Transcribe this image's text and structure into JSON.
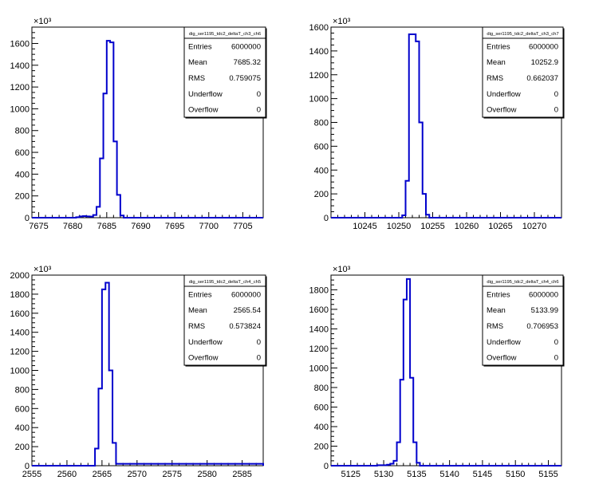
{
  "style": {
    "line_color": "#0000cc",
    "axis_color": "#000000",
    "background": "#ffffff"
  },
  "chart_data": [
    {
      "type": "histogram",
      "title": "",
      "xlabel": "",
      "ylabel": "",
      "exponent_label": "×10³",
      "xlim": [
        7674,
        7708
      ],
      "ylim": [
        0,
        1750
      ],
      "x_ticks": [
        7675,
        7680,
        7685,
        7690,
        7695,
        7700,
        7705
      ],
      "y_ticks": [
        0,
        200,
        400,
        600,
        800,
        1000,
        1200,
        1400,
        1600
      ],
      "y_tick_labels": [
        "0",
        "200",
        "400",
        "600",
        "800",
        "1000",
        "1200",
        "1400",
        "1600"
      ],
      "bin_edges": [
        7674,
        7680.5,
        7681,
        7681.5,
        7682,
        7682.5,
        7683,
        7683.5,
        7684,
        7684.5,
        7685,
        7685.5,
        7686,
        7686.5,
        7687,
        7687.5,
        7708
      ],
      "values": [
        0,
        5,
        12,
        15,
        12,
        10,
        25,
        100,
        545,
        1140,
        1625,
        1610,
        700,
        210,
        20,
        0
      ],
      "legend": "top-right",
      "stats": {
        "name": "dig_ser1195_tdc2_deltaT_ch3_ch6",
        "rows": [
          {
            "label": "Entries",
            "value": "6000000"
          },
          {
            "label": "Mean",
            "value": "7685.32"
          },
          {
            "label": "RMS",
            "value": "0.759075"
          },
          {
            "label": "Underflow",
            "value": "0"
          },
          {
            "label": "Overflow",
            "value": "0"
          }
        ]
      }
    },
    {
      "type": "histogram",
      "title": "",
      "xlabel": "",
      "ylabel": "",
      "exponent_label": "×10³",
      "xlim": [
        10240,
        10274
      ],
      "ylim": [
        0,
        1600
      ],
      "x_ticks": [
        10245,
        10250,
        10255,
        10260,
        10265,
        10270
      ],
      "y_ticks": [
        0,
        200,
        400,
        600,
        800,
        1000,
        1200,
        1400,
        1600
      ],
      "y_tick_labels": [
        "0",
        "200",
        "400",
        "600",
        "800",
        "1000",
        "1200",
        "1400",
        "1600"
      ],
      "bin_edges": [
        10240,
        10250.5,
        10251,
        10251.5,
        10252,
        10252.5,
        10253,
        10253.5,
        10254,
        10254.5,
        10274
      ],
      "values": [
        0,
        20,
        310,
        1540,
        1540,
        1480,
        800,
        200,
        25,
        0
      ],
      "legend": "top-right",
      "stats": {
        "name": "dig_ser1195_tdc2_deltaT_ch3_ch7",
        "rows": [
          {
            "label": "Entries",
            "value": "6000000"
          },
          {
            "label": "Mean",
            "value": "10252.9"
          },
          {
            "label": "RMS",
            "value": "0.662037"
          },
          {
            "label": "Underflow",
            "value": "0"
          },
          {
            "label": "Overflow",
            "value": "0"
          }
        ]
      }
    },
    {
      "type": "histogram",
      "title": "",
      "xlabel": "",
      "ylabel": "",
      "exponent_label": "×10³",
      "xlim": [
        2555,
        2588
      ],
      "ylim": [
        0,
        2000
      ],
      "x_ticks": [
        2555,
        2560,
        2565,
        2570,
        2575,
        2580,
        2585
      ],
      "y_ticks": [
        0,
        200,
        400,
        600,
        800,
        1000,
        1200,
        1400,
        1600,
        1800,
        2000
      ],
      "y_tick_labels": [
        "0",
        "200",
        "400",
        "600",
        "800",
        "1000",
        "1200",
        "1400",
        "1600",
        "1800",
        "2000"
      ],
      "bin_edges": [
        2555,
        2564,
        2564.5,
        2565,
        2565.5,
        2566,
        2566.5,
        2567,
        2588
      ],
      "values": [
        0,
        180,
        810,
        1850,
        1920,
        1000,
        240,
        20
      ],
      "legend": "top-right",
      "stats": {
        "name": "dig_ser1195_tdc2_deltaT_ch4_ch5",
        "rows": [
          {
            "label": "Entries",
            "value": "6000000"
          },
          {
            "label": "Mean",
            "value": "2565.54"
          },
          {
            "label": "RMS",
            "value": "0.573824"
          },
          {
            "label": "Underflow",
            "value": "0"
          },
          {
            "label": "Overflow",
            "value": "0"
          }
        ]
      }
    },
    {
      "type": "histogram",
      "title": "",
      "xlabel": "",
      "ylabel": "",
      "exponent_label": "×10³",
      "xlim": [
        5122,
        5157
      ],
      "ylim": [
        0,
        1950
      ],
      "x_ticks": [
        5125,
        5130,
        5135,
        5140,
        5145,
        5150,
        5155
      ],
      "y_ticks": [
        0,
        200,
        400,
        600,
        800,
        1000,
        1200,
        1400,
        1600,
        1800
      ],
      "y_tick_labels": [
        "0",
        "200",
        "400",
        "600",
        "800",
        "1000",
        "1200",
        "1400",
        "1600",
        "1800"
      ],
      "bin_edges": [
        5122,
        5129,
        5130.5,
        5131,
        5131.5,
        5132,
        5132.5,
        5133,
        5133.5,
        5134,
        5134.5,
        5135,
        5135.5,
        5157
      ],
      "values": [
        0,
        5,
        10,
        20,
        50,
        240,
        880,
        1700,
        1910,
        900,
        240,
        30,
        0
      ],
      "legend": "top-right",
      "stats": {
        "name": "dig_ser1195_tdc2_deltaT_ch4_ch6",
        "rows": [
          {
            "label": "Entries",
            "value": "6000000"
          },
          {
            "label": "Mean",
            "value": "5133.99"
          },
          {
            "label": "RMS",
            "value": "0.706953"
          },
          {
            "label": "Underflow",
            "value": "0"
          },
          {
            "label": "Overflow",
            "value": "0"
          }
        ]
      }
    }
  ]
}
